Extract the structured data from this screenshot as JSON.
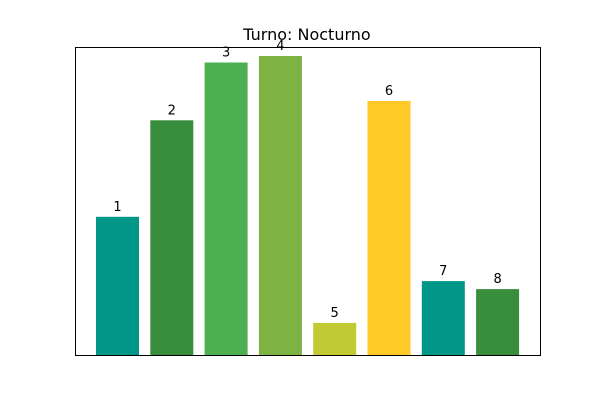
{
  "chart_data": {
    "type": "bar",
    "title": "Turno: Nocturno",
    "xlabel": "",
    "ylabel": "",
    "axes_visible": false,
    "grid": false,
    "categories": [
      "1",
      "2",
      "3",
      "4",
      "5",
      "6",
      "7",
      "8"
    ],
    "values": [
      4.3,
      7.3,
      9.1,
      9.3,
      1.0,
      7.9,
      2.3,
      2.05
    ],
    "ylim": [
      0,
      9.55
    ],
    "bar_colors": [
      "#009688",
      "#388e3c",
      "#4caf50",
      "#7cb342",
      "#c0ca33",
      "#ffca28",
      "#009688",
      "#388e3c"
    ],
    "data_labels": [
      "1",
      "2",
      "3",
      "4",
      "5",
      "6",
      "7",
      "8"
    ]
  }
}
